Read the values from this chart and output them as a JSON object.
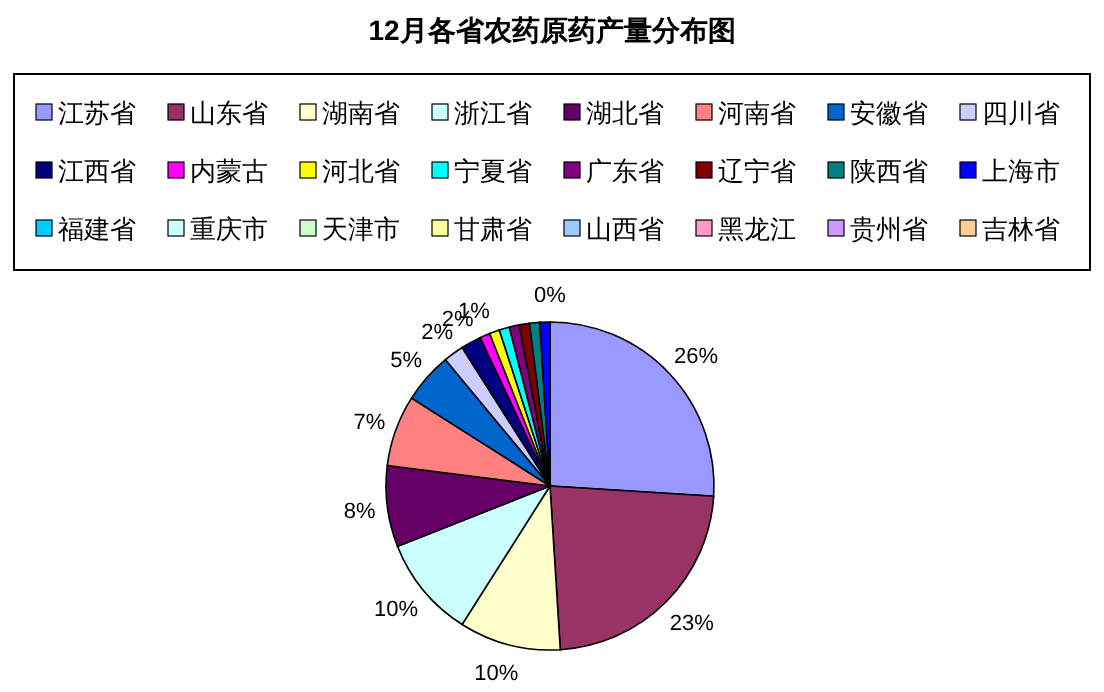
{
  "chart_data": {
    "type": "pie",
    "title": "12月各省农药原药产量分布图",
    "legend": "top",
    "categories": [
      "江苏省",
      "山东省",
      "湖南省",
      "浙江省",
      "湖北省",
      "河南省",
      "安徽省",
      "四川省",
      "江西省",
      "内蒙古",
      "河北省",
      "宁夏省",
      "广东省",
      "辽宁省",
      "陕西省",
      "上海市",
      "福建省",
      "重庆市",
      "天津市",
      "甘肃省",
      "山西省",
      "黑龙江",
      "贵州省",
      "吉林省"
    ],
    "values": [
      26,
      23,
      10,
      10,
      8,
      7,
      5,
      2,
      2,
      1,
      1,
      1,
      1,
      1,
      1,
      1,
      0,
      0,
      0,
      0,
      0,
      0,
      0,
      0
    ],
    "colors": [
      "#9999ff",
      "#993366",
      "#ffffcc",
      "#ccffff",
      "#660066",
      "#ff8080",
      "#0066cc",
      "#ccccff",
      "#000080",
      "#ff00ff",
      "#ffff00",
      "#00ffff",
      "#800080",
      "#800000",
      "#008080",
      "#0000ff",
      "#00ccff",
      "#ccffff",
      "#ccffcc",
      "#ffff99",
      "#99ccff",
      "#ff99cc",
      "#cc99ff",
      "#ffcc99"
    ],
    "value_labels": [
      "26%",
      "23%",
      "10%",
      "10%",
      "8%",
      "7%",
      "5%",
      "2%",
      "2%",
      "1%",
      null,
      null,
      null,
      null,
      null,
      null,
      null,
      null,
      null,
      null,
      null,
      null,
      null,
      "0%"
    ]
  }
}
